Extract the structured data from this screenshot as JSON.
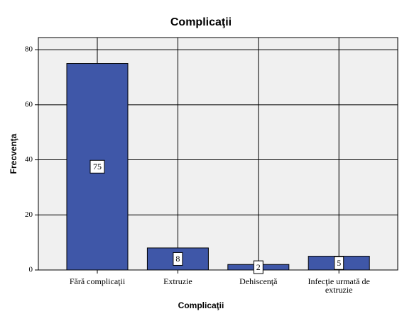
{
  "chart_data": {
    "type": "bar",
    "title": "Complicaţii",
    "x_label": "Complicaţii",
    "y_label": "Frecvenţa",
    "categories": [
      "Fără complicaţii",
      "Extruzie",
      "Dehiscenţă",
      "Infecţie urmată de extruzie"
    ],
    "values": [
      75,
      8,
      2,
      5
    ],
    "color": "#3f57a8",
    "ylim": [
      0,
      84.4
    ],
    "yticks": [
      0,
      20,
      40,
      60,
      80
    ],
    "grid": true
  }
}
